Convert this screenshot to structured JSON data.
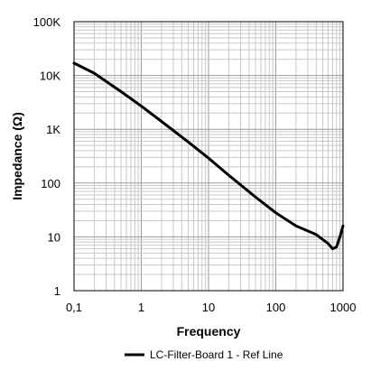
{
  "chart_data": {
    "type": "line",
    "title": "",
    "xlabel": "Frequency",
    "ylabel": "Impedance (Ω)",
    "x_scale": "log",
    "y_scale": "log",
    "xlim": [
      0.1,
      1000
    ],
    "ylim": [
      1,
      100000
    ],
    "grid": true,
    "legend_position": "bottom",
    "x_tick_labels": [
      {
        "value": 0.1,
        "label": "0,1"
      },
      {
        "value": 1,
        "label": "1"
      },
      {
        "value": 10,
        "label": "10"
      },
      {
        "value": 100,
        "label": "100"
      },
      {
        "value": 1000,
        "label": "1000"
      }
    ],
    "y_tick_labels": [
      {
        "value": 100000,
        "label": "100K"
      },
      {
        "value": 10000,
        "label": "10K"
      },
      {
        "value": 1000,
        "label": "1K"
      },
      {
        "value": 100,
        "label": "100"
      },
      {
        "value": 10,
        "label": "10"
      },
      {
        "value": 1,
        "label": "1"
      }
    ],
    "series": [
      {
        "name": "LC-Filter-Board 1 - Ref Line",
        "color": "#000000",
        "x": [
          0.1,
          0.2,
          0.5,
          1,
          2,
          5,
          10,
          20,
          50,
          100,
          200,
          400,
          600,
          700,
          800,
          900,
          1000
        ],
        "y": [
          17000,
          11000,
          5000,
          2700,
          1400,
          580,
          290,
          140,
          55,
          28,
          16,
          11,
          7.5,
          6,
          6.5,
          10,
          16
        ]
      }
    ]
  }
}
